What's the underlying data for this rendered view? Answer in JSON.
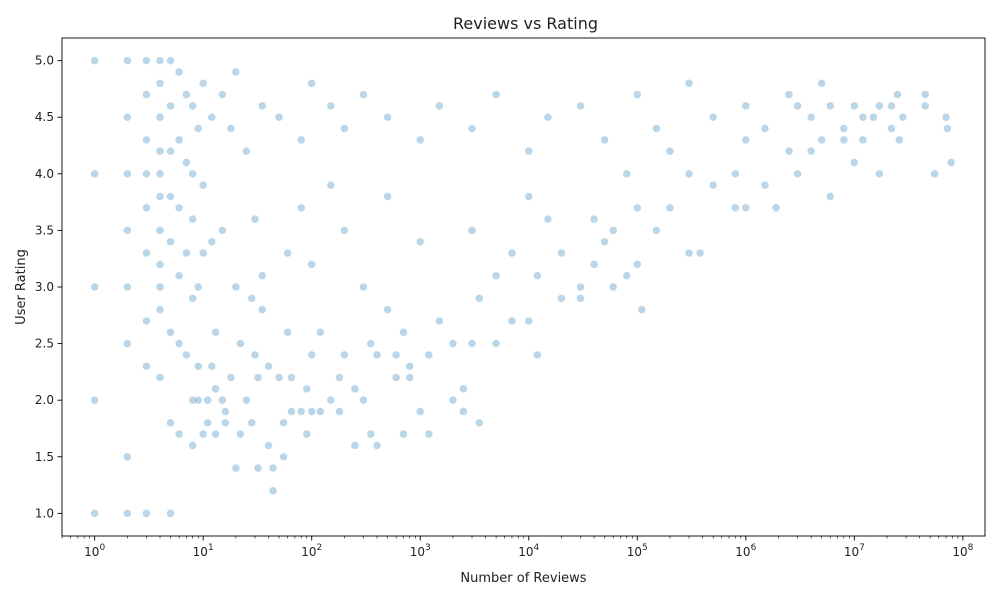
{
  "chart_data": {
    "type": "scatter",
    "title": "Reviews vs Rating",
    "xlabel": "Number of Reviews",
    "ylabel": "User Rating",
    "x_scale": "log",
    "xlim": [
      0.5,
      160000000
    ],
    "ylim": [
      0.8,
      5.2
    ],
    "grid": false,
    "color": "#1f77b4",
    "x_ticks": [
      {
        "value": 1,
        "base": "10",
        "exp": "0"
      },
      {
        "value": 10,
        "base": "10",
        "exp": "1"
      },
      {
        "value": 100,
        "base": "10",
        "exp": "2"
      },
      {
        "value": 1000,
        "base": "10",
        "exp": "3"
      },
      {
        "value": 10000,
        "base": "10",
        "exp": "4"
      },
      {
        "value": 100000,
        "base": "10",
        "exp": "5"
      },
      {
        "value": 1000000,
        "base": "10",
        "exp": "6"
      },
      {
        "value": 10000000,
        "base": "10",
        "exp": "7"
      },
      {
        "value": 100000000,
        "base": "10",
        "exp": "8"
      }
    ],
    "y_ticks": [
      {
        "value": 1.0,
        "label": "1.0"
      },
      {
        "value": 1.5,
        "label": "1.5"
      },
      {
        "value": 2.0,
        "label": "2.0"
      },
      {
        "value": 2.5,
        "label": "2.5"
      },
      {
        "value": 3.0,
        "label": "3.0"
      },
      {
        "value": 3.5,
        "label": "3.5"
      },
      {
        "value": 4.0,
        "label": "4.0"
      },
      {
        "value": 4.5,
        "label": "4.5"
      },
      {
        "value": 5.0,
        "label": "5.0"
      }
    ],
    "points": [
      [
        1,
        5.0
      ],
      [
        1,
        4.0
      ],
      [
        1,
        3.0
      ],
      [
        1,
        2.0
      ],
      [
        1,
        1.0
      ],
      [
        2,
        5.0
      ],
      [
        2,
        4.5
      ],
      [
        2,
        4.0
      ],
      [
        2,
        3.5
      ],
      [
        2,
        3.0
      ],
      [
        2,
        2.5
      ],
      [
        2,
        1.5
      ],
      [
        2,
        1.0
      ],
      [
        3,
        5.0
      ],
      [
        3,
        4.7
      ],
      [
        3,
        4.3
      ],
      [
        3,
        4.0
      ],
      [
        3,
        3.7
      ],
      [
        3,
        3.3
      ],
      [
        3,
        2.7
      ],
      [
        3,
        2.3
      ],
      [
        3,
        1.0
      ],
      [
        4,
        5.0
      ],
      [
        4,
        4.8
      ],
      [
        4,
        4.5
      ],
      [
        4,
        4.2
      ],
      [
        4,
        4.0
      ],
      [
        4,
        3.8
      ],
      [
        4,
        3.5
      ],
      [
        4,
        3.2
      ],
      [
        4,
        3.0
      ],
      [
        4,
        2.8
      ],
      [
        4,
        2.2
      ],
      [
        5,
        5.0
      ],
      [
        5,
        4.6
      ],
      [
        5,
        4.2
      ],
      [
        5,
        3.8
      ],
      [
        5,
        3.4
      ],
      [
        5,
        2.6
      ],
      [
        5,
        1.8
      ],
      [
        5,
        1.0
      ],
      [
        6,
        4.9
      ],
      [
        6,
        4.3
      ],
      [
        6,
        3.7
      ],
      [
        6,
        3.1
      ],
      [
        6,
        2.5
      ],
      [
        6,
        1.7
      ],
      [
        7,
        4.7
      ],
      [
        7,
        4.1
      ],
      [
        7,
        3.3
      ],
      [
        7,
        2.4
      ],
      [
        8,
        4.6
      ],
      [
        8,
        4.0
      ],
      [
        8,
        3.6
      ],
      [
        8,
        2.9
      ],
      [
        8,
        2.0
      ],
      [
        8,
        1.6
      ],
      [
        9,
        4.4
      ],
      [
        9,
        3.0
      ],
      [
        9,
        2.3
      ],
      [
        9,
        2.0
      ],
      [
        10,
        4.8
      ],
      [
        10,
        3.9
      ],
      [
        10,
        3.3
      ],
      [
        10,
        1.7
      ],
      [
        11,
        2.0
      ],
      [
        11,
        1.8
      ],
      [
        12,
        4.5
      ],
      [
        12,
        3.4
      ],
      [
        12,
        2.3
      ],
      [
        13,
        2.6
      ],
      [
        13,
        2.1
      ],
      [
        13,
        1.7
      ],
      [
        15,
        4.7
      ],
      [
        15,
        3.5
      ],
      [
        15,
        2.0
      ],
      [
        16,
        1.8
      ],
      [
        16,
        1.9
      ],
      [
        18,
        4.4
      ],
      [
        18,
        2.2
      ],
      [
        20,
        4.9
      ],
      [
        20,
        3.0
      ],
      [
        20,
        1.4
      ],
      [
        22,
        1.7
      ],
      [
        22,
        2.5
      ],
      [
        25,
        4.2
      ],
      [
        25,
        2.0
      ],
      [
        28,
        1.8
      ],
      [
        28,
        2.9
      ],
      [
        30,
        3.6
      ],
      [
        30,
        2.4
      ],
      [
        32,
        2.2
      ],
      [
        32,
        1.4
      ],
      [
        35,
        4.6
      ],
      [
        35,
        3.1
      ],
      [
        35,
        2.8
      ],
      [
        40,
        1.6
      ],
      [
        40,
        2.3
      ],
      [
        44,
        1.2
      ],
      [
        44,
        1.4
      ],
      [
        50,
        4.5
      ],
      [
        50,
        2.2
      ],
      [
        55,
        1.8
      ],
      [
        55,
        1.5
      ],
      [
        60,
        3.3
      ],
      [
        60,
        2.6
      ],
      [
        65,
        1.9
      ],
      [
        65,
        2.2
      ],
      [
        80,
        4.3
      ],
      [
        80,
        3.7
      ],
      [
        80,
        1.9
      ],
      [
        90,
        2.1
      ],
      [
        90,
        1.7
      ],
      [
        100,
        4.8
      ],
      [
        100,
        3.2
      ],
      [
        100,
        2.4
      ],
      [
        100,
        1.9
      ],
      [
        120,
        2.6
      ],
      [
        120,
        1.9
      ],
      [
        150,
        4.6
      ],
      [
        150,
        3.9
      ],
      [
        150,
        2.0
      ],
      [
        180,
        2.2
      ],
      [
        180,
        1.9
      ],
      [
        200,
        4.4
      ],
      [
        200,
        3.5
      ],
      [
        200,
        2.4
      ],
      [
        250,
        2.1
      ],
      [
        250,
        1.6
      ],
      [
        300,
        4.7
      ],
      [
        300,
        3.0
      ],
      [
        300,
        2.0
      ],
      [
        350,
        1.7
      ],
      [
        350,
        2.5
      ],
      [
        400,
        2.4
      ],
      [
        400,
        1.6
      ],
      [
        500,
        4.5
      ],
      [
        500,
        3.8
      ],
      [
        500,
        2.8
      ],
      [
        600,
        2.4
      ],
      [
        600,
        2.2
      ],
      [
        700,
        1.7
      ],
      [
        700,
        2.6
      ],
      [
        800,
        2.3
      ],
      [
        800,
        2.2
      ],
      [
        1000,
        4.3
      ],
      [
        1000,
        3.4
      ],
      [
        1000,
        1.9
      ],
      [
        1200,
        2.4
      ],
      [
        1200,
        1.7
      ],
      [
        1500,
        4.6
      ],
      [
        1500,
        2.7
      ],
      [
        2000,
        2.5
      ],
      [
        2000,
        2.0
      ],
      [
        2500,
        2.1
      ],
      [
        2500,
        1.9
      ],
      [
        3000,
        4.4
      ],
      [
        3000,
        3.5
      ],
      [
        3000,
        2.5
      ],
      [
        3500,
        1.8
      ],
      [
        3500,
        2.9
      ],
      [
        5000,
        4.7
      ],
      [
        5000,
        3.1
      ],
      [
        5000,
        2.5
      ],
      [
        7000,
        2.7
      ],
      [
        7000,
        3.3
      ],
      [
        10000,
        4.2
      ],
      [
        10000,
        3.8
      ],
      [
        10000,
        2.7
      ],
      [
        12000,
        2.4
      ],
      [
        12000,
        3.1
      ],
      [
        15000,
        4.5
      ],
      [
        15000,
        3.6
      ],
      [
        20000,
        3.3
      ],
      [
        20000,
        2.9
      ],
      [
        30000,
        4.6
      ],
      [
        30000,
        3.0
      ],
      [
        30000,
        2.9
      ],
      [
        40000,
        3.2
      ],
      [
        40000,
        3.6
      ],
      [
        50000,
        4.3
      ],
      [
        50000,
        3.4
      ],
      [
        60000,
        3.0
      ],
      [
        60000,
        3.5
      ],
      [
        80000,
        3.1
      ],
      [
        80000,
        4.0
      ],
      [
        100000,
        4.7
      ],
      [
        100000,
        3.7
      ],
      [
        100000,
        3.2
      ],
      [
        110000,
        2.8
      ],
      [
        150000,
        4.4
      ],
      [
        150000,
        3.5
      ],
      [
        200000,
        3.7
      ],
      [
        200000,
        4.2
      ],
      [
        300000,
        4.8
      ],
      [
        300000,
        4.0
      ],
      [
        300000,
        3.3
      ],
      [
        380000,
        3.3
      ],
      [
        500000,
        4.5
      ],
      [
        500000,
        3.9
      ],
      [
        800000,
        4.0
      ],
      [
        800000,
        3.7
      ],
      [
        1000000,
        4.6
      ],
      [
        1000000,
        4.3
      ],
      [
        1000000,
        3.7
      ],
      [
        1500000,
        4.4
      ],
      [
        1500000,
        3.9
      ],
      [
        1900000,
        3.7
      ],
      [
        2500000,
        4.7
      ],
      [
        2500000,
        4.2
      ],
      [
        3000000,
        4.0
      ],
      [
        3000000,
        4.6
      ],
      [
        4000000,
        4.5
      ],
      [
        4000000,
        4.2
      ],
      [
        5000000,
        4.8
      ],
      [
        5000000,
        4.3
      ],
      [
        6000000,
        3.8
      ],
      [
        6000000,
        4.6
      ],
      [
        8000000,
        4.4
      ],
      [
        8000000,
        4.3
      ],
      [
        10000000,
        4.6
      ],
      [
        10000000,
        4.1
      ],
      [
        12000000,
        4.3
      ],
      [
        12000000,
        4.5
      ],
      [
        15000000,
        4.5
      ],
      [
        17000000,
        4.6
      ],
      [
        17000000,
        4.0
      ],
      [
        22000000,
        4.4
      ],
      [
        22000000,
        4.6
      ],
      [
        25000000,
        4.7
      ],
      [
        26000000,
        4.3
      ],
      [
        28000000,
        4.5
      ],
      [
        45000000,
        4.7
      ],
      [
        45000000,
        4.6
      ],
      [
        55000000,
        4.0
      ],
      [
        70000000,
        4.5
      ],
      [
        72000000,
        4.4
      ],
      [
        78000000,
        4.1
      ]
    ]
  }
}
